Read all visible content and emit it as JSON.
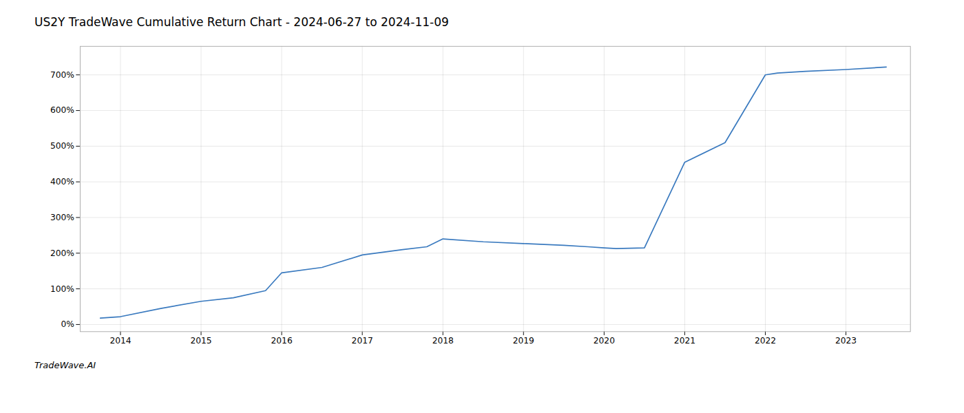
{
  "chart_data": {
    "type": "line",
    "title": "US2Y TradeWave Cumulative Return Chart - 2024-06-27 to 2024-11-09",
    "annotations": [
      "TradeWave.AI"
    ],
    "x": [
      2013.75,
      2014.0,
      2014.5,
      2015.0,
      2015.4,
      2015.8,
      2016.0,
      2016.5,
      2017.0,
      2017.5,
      2017.8,
      2018.0,
      2018.5,
      2019.0,
      2019.5,
      2019.8,
      2020.0,
      2020.15,
      2020.5,
      2021.0,
      2021.5,
      2022.0,
      2022.15,
      2022.5,
      2023.0,
      2023.5
    ],
    "values": [
      18,
      22,
      45,
      65,
      75,
      95,
      145,
      160,
      195,
      210,
      218,
      240,
      232,
      227,
      222,
      218,
      215,
      213,
      215,
      455,
      510,
      700,
      705,
      710,
      715,
      722
    ],
    "color": "#3a7abf",
    "xlim": [
      2013.5,
      2023.8
    ],
    "xticks": [
      2014,
      2015,
      2016,
      2017,
      2018,
      2019,
      2020,
      2021,
      2022,
      2023
    ],
    "ylim": [
      -20,
      780
    ],
    "yticks": [
      {
        "value": 0,
        "label": "0%"
      },
      {
        "value": 100,
        "label": "100%"
      },
      {
        "value": 200,
        "label": "200%"
      },
      {
        "value": 300,
        "label": "300%"
      },
      {
        "value": 400,
        "label": "400%"
      },
      {
        "value": 500,
        "label": "500%"
      },
      {
        "value": 600,
        "label": "600%"
      },
      {
        "value": 700,
        "label": "700%"
      }
    ],
    "grid": true
  }
}
